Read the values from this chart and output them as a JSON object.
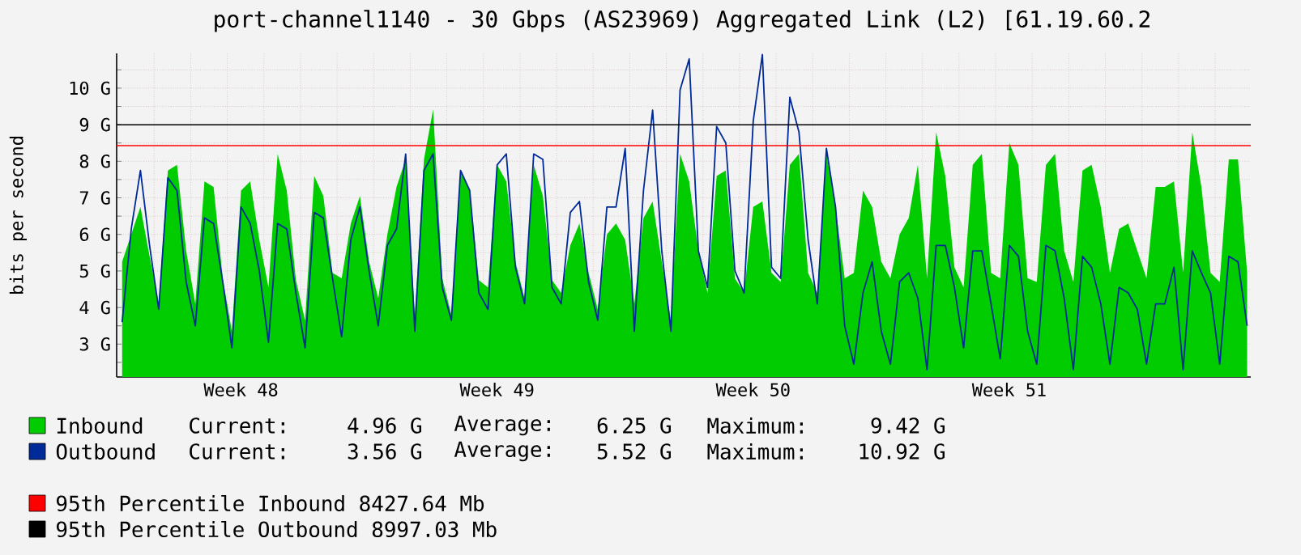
{
  "chart_data": {
    "type": "area",
    "title": "port-channel1140 - 30 Gbps (AS23969) Aggregated Link (L2) [61.19.60.2",
    "ylabel": "bits per second",
    "categories": [
      null,
      null,
      null,
      null,
      null,
      null,
      null,
      null,
      null,
      null,
      null,
      null,
      null,
      "Week 48",
      null,
      null,
      null,
      null,
      null,
      null,
      null,
      null,
      null,
      null,
      null,
      null,
      null,
      null,
      null,
      null,
      null,
      null,
      null,
      null,
      null,
      null,
      null,
      null,
      null,
      null,
      null,
      "Week 49",
      null,
      null,
      null,
      null,
      null,
      null,
      null,
      null,
      null,
      null,
      null,
      null,
      null,
      null,
      null,
      null,
      null,
      null,
      null,
      null,
      null,
      null,
      null,
      null,
      null,
      null,
      null,
      "Week 50",
      null,
      null,
      null,
      null,
      null,
      null,
      null,
      null,
      null,
      null,
      null,
      null,
      null,
      null,
      null,
      null,
      null,
      null,
      null,
      null,
      null,
      null,
      null,
      null,
      null,
      null,
      null,
      "Week 51",
      null,
      null,
      null,
      null,
      null,
      null,
      null,
      null,
      null,
      null,
      null,
      null,
      null,
      null,
      null,
      null,
      null,
      null,
      null,
      null,
      null,
      null,
      null,
      null,
      null,
      null
    ],
    "series": [
      {
        "name": "Inbound",
        "color": "#00cc00",
        "values": [
          5.25,
          6.0,
          6.75,
          5.4,
          4.1,
          7.75,
          7.9,
          5.55,
          4.1,
          7.45,
          7.3,
          4.8,
          3.35,
          7.2,
          7.45,
          5.85,
          4.55,
          8.2,
          7.2,
          4.75,
          3.65,
          7.6,
          7.05,
          4.95,
          4.8,
          6.3,
          7.05,
          5.25,
          4.25,
          6.0,
          7.3,
          8.05,
          3.8,
          8.05,
          9.42,
          4.8,
          3.8,
          7.75,
          7.2,
          4.75,
          4.55,
          7.9,
          7.45,
          5.25,
          4.25,
          7.9,
          7.05,
          4.75,
          4.4,
          5.7,
          6.3,
          4.95,
          3.95,
          6.0,
          6.3,
          5.85,
          4.1,
          6.45,
          6.9,
          5.25,
          3.65,
          8.2,
          7.45,
          5.55,
          4.4,
          7.6,
          7.75,
          4.8,
          4.4,
          6.75,
          6.9,
          4.95,
          4.7,
          7.9,
          8.2,
          4.95,
          4.4,
          8.2,
          6.75,
          4.8,
          4.95,
          7.2,
          6.75,
          5.25,
          4.8,
          6.0,
          6.45,
          7.9,
          4.8,
          8.8,
          7.6,
          5.1,
          4.55,
          7.9,
          8.2,
          4.95,
          4.8,
          8.5,
          7.9,
          4.8,
          4.7,
          7.9,
          8.2,
          5.55,
          4.7,
          7.75,
          7.9,
          6.75,
          4.95,
          6.15,
          6.3,
          5.55,
          4.8,
          7.3,
          7.3,
          7.45,
          4.95,
          8.8,
          7.3,
          4.95,
          4.7,
          8.05,
          8.05,
          4.95
        ]
      },
      {
        "name": "Outbound",
        "type": "line",
        "color": "#002a97",
        "values": [
          3.6,
          6.15,
          7.75,
          5.7,
          3.95,
          7.55,
          7.2,
          4.7,
          3.5,
          6.45,
          6.3,
          4.7,
          2.9,
          6.75,
          6.3,
          5.0,
          3.05,
          6.3,
          6.15,
          4.4,
          2.9,
          6.6,
          6.45,
          4.8,
          3.2,
          5.85,
          6.75,
          5.0,
          3.5,
          5.7,
          6.15,
          8.2,
          3.35,
          7.75,
          8.2,
          4.55,
          3.65,
          7.75,
          7.2,
          4.4,
          3.95,
          7.9,
          8.2,
          5.1,
          4.1,
          8.2,
          8.05,
          4.55,
          4.1,
          6.6,
          6.9,
          4.7,
          3.65,
          6.75,
          6.75,
          8.35,
          3.35,
          7.2,
          9.4,
          5.55,
          3.35,
          9.95,
          10.8,
          5.55,
          4.55,
          8.95,
          8.5,
          5.0,
          4.4,
          9.1,
          10.92,
          5.1,
          4.8,
          9.75,
          8.8,
          5.85,
          4.1,
          8.35,
          6.75,
          3.5,
          2.45,
          4.4,
          5.25,
          3.35,
          2.45,
          4.7,
          4.95,
          4.25,
          2.3,
          5.7,
          5.7,
          4.55,
          2.9,
          5.55,
          5.55,
          4.1,
          2.6,
          5.7,
          5.4,
          3.35,
          2.45,
          5.7,
          5.55,
          4.25,
          2.3,
          5.4,
          5.1,
          4.1,
          2.45,
          4.55,
          4.4,
          3.95,
          2.45,
          4.1,
          4.1,
          5.1,
          2.3,
          5.55,
          4.95,
          4.4,
          2.45,
          5.4,
          5.25,
          3.5
        ]
      }
    ],
    "ylim": [
      2.1,
      10.95
    ],
    "yticks": [
      {
        "value": 2.5,
        "label": null
      },
      {
        "value": 3,
        "label": "3 G"
      },
      {
        "value": 3.5,
        "label": null
      },
      {
        "value": 4,
        "label": "4 G"
      },
      {
        "value": 4.5,
        "label": null
      },
      {
        "value": 5,
        "label": "5 G"
      },
      {
        "value": 5.5,
        "label": null
      },
      {
        "value": 6,
        "label": "6 G"
      },
      {
        "value": 6.5,
        "label": null
      },
      {
        "value": 7,
        "label": "7 G"
      },
      {
        "value": 7.5,
        "label": null
      },
      {
        "value": 8,
        "label": "8 G"
      },
      {
        "value": 8.5,
        "label": null
      },
      {
        "value": 9,
        "label": "9 G"
      },
      {
        "value": 9.5,
        "label": null
      },
      {
        "value": 10,
        "label": "10 G"
      },
      {
        "value": 10.5,
        "label": null
      }
    ],
    "grid": true,
    "legend": "bottom",
    "ref_lines": [
      {
        "axis": "y",
        "value": 8.42764,
        "label": "95th Percentile Inbound 8427.64 Mb",
        "color": "#ff0000"
      },
      {
        "axis": "y",
        "value": 8.99703,
        "label": "95th Percentile Outbound 8997.03 Mb",
        "color": "#000000"
      }
    ],
    "annotations": [
      "Current:",
      "4.96 G",
      "Average:",
      "6.25 G",
      "Maximum:",
      "9.42 G",
      "Current:",
      "3.56 G",
      "Average:",
      "5.52 G",
      "Maximum:",
      "10.92 G"
    ]
  }
}
